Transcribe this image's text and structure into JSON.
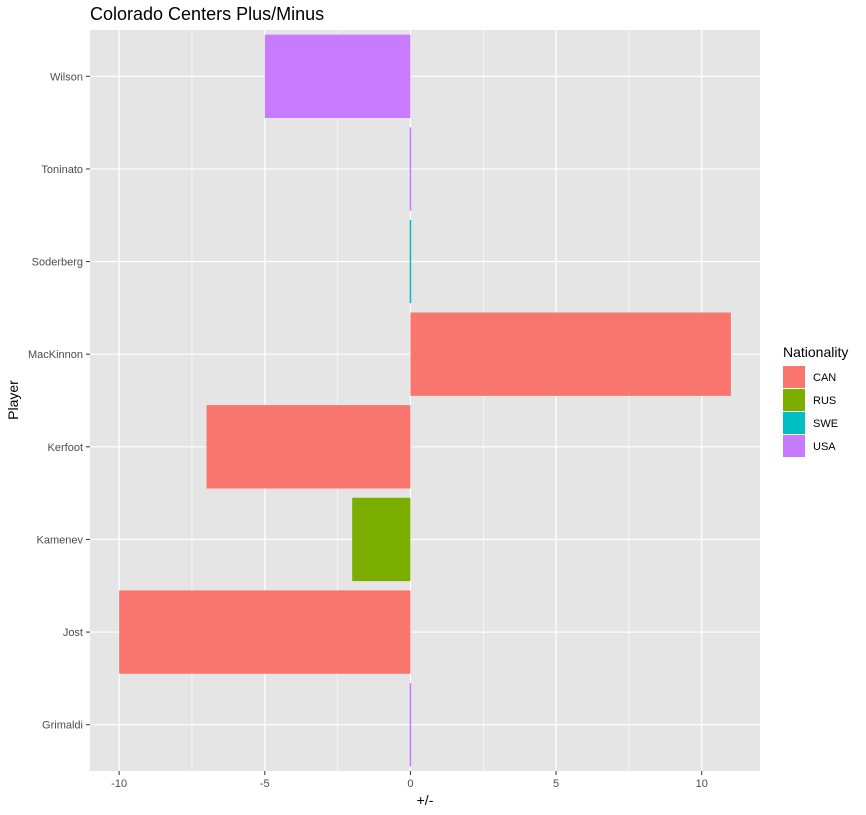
{
  "chart_data": {
    "type": "bar",
    "orientation": "horizontal",
    "title": "Colorado Centers Plus/Minus",
    "xlabel": "+/-",
    "ylabel": "Player",
    "xlim": [
      -11,
      12
    ],
    "x_ticks": [
      -10,
      -5,
      0,
      5,
      10
    ],
    "x_tick_labels": [
      "-10",
      "-5",
      "0",
      "5",
      "10"
    ],
    "categories": [
      "Grimaldi",
      "Jost",
      "Kamenev",
      "Kerfoot",
      "MacKinnon",
      "Soderberg",
      "Toninato",
      "Wilson"
    ],
    "values": [
      0,
      -10,
      -2,
      -7,
      11,
      0,
      0,
      -5
    ],
    "nationality": [
      "USA",
      "CAN",
      "RUS",
      "CAN",
      "CAN",
      "SWE",
      "USA",
      "USA"
    ],
    "grid": true,
    "legend": {
      "title": "Nationality",
      "position": "right",
      "entries": [
        {
          "label": "CAN",
          "color": "#F8766D"
        },
        {
          "label": "RUS",
          "color": "#7CAE00"
        },
        {
          "label": "SWE",
          "color": "#00BFC4"
        },
        {
          "label": "USA",
          "color": "#C77CFF"
        }
      ]
    },
    "colors": {
      "panel_background": "#e5e5e5",
      "grid_line": "#ffffff",
      "CAN": "#F8766D",
      "RUS": "#7CAE00",
      "SWE": "#00BFC4",
      "USA": "#C77CFF"
    }
  }
}
